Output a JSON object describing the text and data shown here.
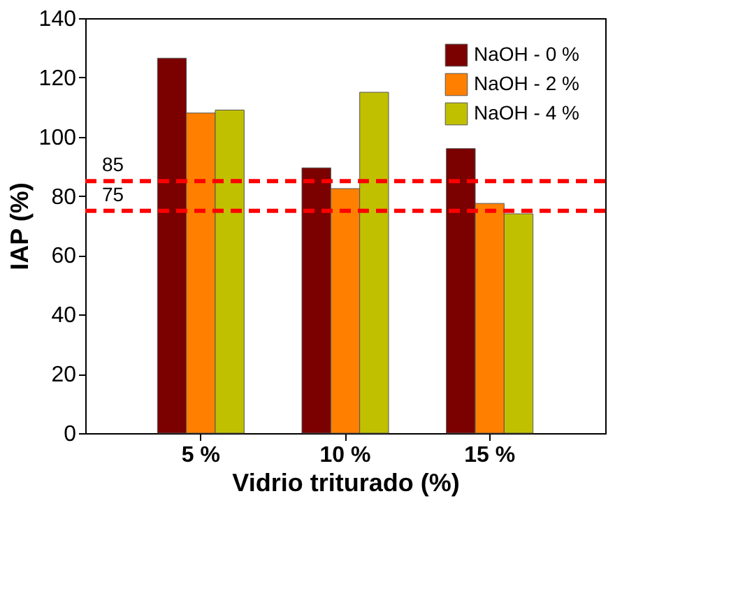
{
  "chart_data": {
    "type": "bar",
    "xlabel": "Vidrio triturado (%)",
    "ylabel": "IAP (%)",
    "categories": [
      "5 %",
      "10 %",
      "15 %"
    ],
    "series": [
      {
        "name": "NaOH - 0 %",
        "color": "#7b0000",
        "values": [
          126.5,
          89.5,
          96
        ]
      },
      {
        "name": "NaOH - 2 %",
        "color": "#ff8000",
        "values": [
          108,
          82.5,
          77.5
        ]
      },
      {
        "name": "NaOH - 4 %",
        "color": "#c0c000",
        "values": [
          109,
          115,
          74
        ]
      }
    ],
    "ylim": [
      0,
      140
    ],
    "yticks": [
      0,
      20,
      40,
      60,
      80,
      100,
      120,
      140
    ],
    "grid": false,
    "legend": "top right",
    "ref_lines": [
      {
        "axis": "y",
        "value": 85,
        "label": "85",
        "color": "#ff0000",
        "line_style": "dashed"
      },
      {
        "axis": "y",
        "value": 75,
        "label": "75",
        "color": "#ff0000",
        "line_style": "dashed"
      }
    ]
  }
}
